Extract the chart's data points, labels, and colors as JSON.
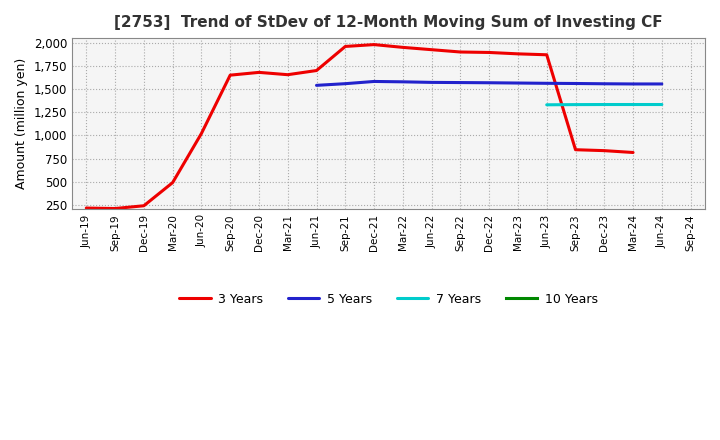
{
  "title": "[2753]  Trend of StDev of 12-Month Moving Sum of Investing CF",
  "ylabel": "Amount (million yen)",
  "background_color": "#ffffff",
  "plot_bg_color": "#f5f5f5",
  "grid_color": "#aaaaaa",
  "ylim": [
    200,
    2050
  ],
  "yticks": [
    250,
    500,
    750,
    1000,
    1250,
    1500,
    1750,
    2000
  ],
  "x_labels": [
    "Jun-19",
    "Sep-19",
    "Dec-19",
    "Mar-20",
    "Jun-20",
    "Sep-20",
    "Dec-20",
    "Mar-21",
    "Jun-21",
    "Sep-21",
    "Dec-21",
    "Mar-22",
    "Jun-22",
    "Sep-22",
    "Dec-22",
    "Mar-23",
    "Jun-23",
    "Sep-23",
    "Dec-23",
    "Mar-24",
    "Jun-24",
    "Sep-24"
  ],
  "series": {
    "3 Years": {
      "color": "#ee0000",
      "linewidth": 2.2,
      "data_x": [
        0,
        1,
        2,
        3,
        4,
        5,
        6,
        7,
        8,
        9,
        10,
        11,
        12,
        13,
        14,
        15,
        16,
        17,
        18,
        19
      ],
      "data_y": [
        215,
        210,
        240,
        490,
        1020,
        1650,
        1680,
        1655,
        1700,
        1960,
        1980,
        1950,
        1925,
        1900,
        1895,
        1880,
        1870,
        845,
        835,
        815
      ]
    },
    "5 Years": {
      "color": "#2222cc",
      "linewidth": 2.2,
      "data_x": [
        8,
        9,
        10,
        11,
        12,
        13,
        14,
        15,
        16,
        17,
        18,
        19,
        20
      ],
      "data_y": [
        1540,
        1558,
        1582,
        1578,
        1572,
        1570,
        1568,
        1565,
        1562,
        1560,
        1557,
        1555,
        1555
      ]
    },
    "7 Years": {
      "color": "#00cccc",
      "linewidth": 2.2,
      "data_x": [
        16,
        17,
        18,
        19,
        20
      ],
      "data_y": [
        1330,
        1332,
        1333,
        1333,
        1333
      ]
    },
    "10 Years": {
      "color": "#008800",
      "linewidth": 2.2,
      "data_x": [],
      "data_y": []
    }
  }
}
